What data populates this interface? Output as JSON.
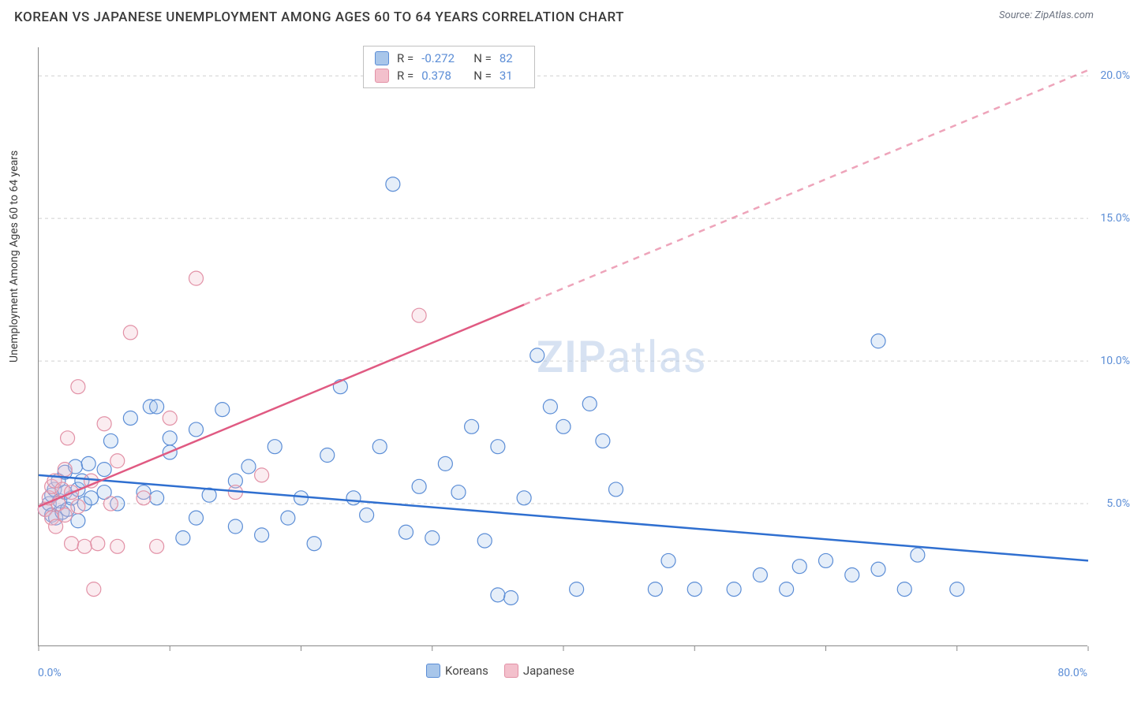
{
  "title": "KOREAN VS JAPANESE UNEMPLOYMENT AMONG AGES 60 TO 64 YEARS CORRELATION CHART",
  "source": "Source: ZipAtlas.com",
  "y_axis_label": "Unemployment Among Ages 60 to 64 years",
  "watermark_part1": "ZIP",
  "watermark_part2": "atlas",
  "chart": {
    "type": "scatter",
    "xlim": [
      0,
      80
    ],
    "ylim": [
      0,
      21
    ],
    "x_tick_positions": [
      0,
      10,
      20,
      30,
      40,
      50,
      60,
      70,
      80
    ],
    "x_tick_labels_shown": {
      "0": "0.0%",
      "80": "80.0%"
    },
    "y_gridlines": [
      5,
      10,
      15,
      20
    ],
    "y_tick_labels": {
      "5": "5.0%",
      "10": "10.0%",
      "15": "15.0%",
      "20": "20.0%"
    },
    "grid_color": "#d0d0d0",
    "axis_color": "#888888",
    "background_color": "#ffffff",
    "tick_label_color": "#5b8dd6",
    "title_fontsize": 17,
    "label_fontsize": 14,
    "marker_radius": 9,
    "marker_stroke_width": 1.2,
    "marker_fill_opacity": 0.3,
    "line_width": 2.5,
    "series": [
      {
        "name": "Koreans",
        "color_fill": "#a8c6ea",
        "color_stroke": "#5b8dd6",
        "line_color": "#2f6fd0",
        "R": "-0.272",
        "N": "82",
        "trendline": {
          "x1": 0,
          "y1": 6.0,
          "x2": 80,
          "y2": 3.0,
          "dash_from_x": null
        },
        "points": [
          [
            0.5,
            4.8
          ],
          [
            0.8,
            5.0
          ],
          [
            1.0,
            4.6
          ],
          [
            1.0,
            5.3
          ],
          [
            1.2,
            5.5
          ],
          [
            1.3,
            4.5
          ],
          [
            1.5,
            5.8
          ],
          [
            1.6,
            5.1
          ],
          [
            1.8,
            4.7
          ],
          [
            2.0,
            5.4
          ],
          [
            2.0,
            6.1
          ],
          [
            2.2,
            4.8
          ],
          [
            2.5,
            5.2
          ],
          [
            2.8,
            6.3
          ],
          [
            3.0,
            5.5
          ],
          [
            3.0,
            4.4
          ],
          [
            3.3,
            5.8
          ],
          [
            3.5,
            5.0
          ],
          [
            3.8,
            6.4
          ],
          [
            4.0,
            5.2
          ],
          [
            5.0,
            6.2
          ],
          [
            5.0,
            5.4
          ],
          [
            5.5,
            7.2
          ],
          [
            6.0,
            5.0
          ],
          [
            7.0,
            8.0
          ],
          [
            8.0,
            5.4
          ],
          [
            8.5,
            8.4
          ],
          [
            9.0,
            5.2
          ],
          [
            9.0,
            8.4
          ],
          [
            10.0,
            6.8
          ],
          [
            10.0,
            7.3
          ],
          [
            11.0,
            3.8
          ],
          [
            12.0,
            7.6
          ],
          [
            12.0,
            4.5
          ],
          [
            13.0,
            5.3
          ],
          [
            14.0,
            8.3
          ],
          [
            15.0,
            5.8
          ],
          [
            15.0,
            4.2
          ],
          [
            16.0,
            6.3
          ],
          [
            17.0,
            3.9
          ],
          [
            18.0,
            7.0
          ],
          [
            19.0,
            4.5
          ],
          [
            20.0,
            5.2
          ],
          [
            21.0,
            3.6
          ],
          [
            22.0,
            6.7
          ],
          [
            23.0,
            9.1
          ],
          [
            24.0,
            5.2
          ],
          [
            25.0,
            4.6
          ],
          [
            26.0,
            7.0
          ],
          [
            27.0,
            16.2
          ],
          [
            28.0,
            4.0
          ],
          [
            29.0,
            5.6
          ],
          [
            30.0,
            3.8
          ],
          [
            31.0,
            6.4
          ],
          [
            32.0,
            5.4
          ],
          [
            33.0,
            7.7
          ],
          [
            34.0,
            3.7
          ],
          [
            35.0,
            7.0
          ],
          [
            36.0,
            1.7
          ],
          [
            37.0,
            5.2
          ],
          [
            38.0,
            10.2
          ],
          [
            39.0,
            8.4
          ],
          [
            40.0,
            7.7
          ],
          [
            41.0,
            2.0
          ],
          [
            42.0,
            8.5
          ],
          [
            43.0,
            7.2
          ],
          [
            44.0,
            5.5
          ],
          [
            47.0,
            2.0
          ],
          [
            48.0,
            3.0
          ],
          [
            50.0,
            2.0
          ],
          [
            53.0,
            2.0
          ],
          [
            55.0,
            2.5
          ],
          [
            57.0,
            2.0
          ],
          [
            58.0,
            2.8
          ],
          [
            60.0,
            3.0
          ],
          [
            62.0,
            2.5
          ],
          [
            64.0,
            10.7
          ],
          [
            66.0,
            2.0
          ],
          [
            67.0,
            3.2
          ],
          [
            70.0,
            2.0
          ],
          [
            64.0,
            2.7
          ],
          [
            35.0,
            1.8
          ]
        ]
      },
      {
        "name": "Japanese",
        "color_fill": "#f3c0cc",
        "color_stroke": "#e291a6",
        "line_color": "#e05a82",
        "R": "0.378",
        "N": "31",
        "trendline": {
          "x1": 0,
          "y1": 4.9,
          "x2": 80,
          "y2": 20.2,
          "dash_from_x": 37
        },
        "points": [
          [
            0.5,
            4.8
          ],
          [
            0.8,
            5.2
          ],
          [
            1.0,
            4.5
          ],
          [
            1.0,
            5.6
          ],
          [
            1.2,
            5.8
          ],
          [
            1.3,
            4.2
          ],
          [
            1.5,
            5.0
          ],
          [
            1.8,
            5.5
          ],
          [
            2.0,
            4.6
          ],
          [
            2.0,
            6.2
          ],
          [
            2.2,
            7.3
          ],
          [
            2.5,
            3.6
          ],
          [
            2.5,
            5.4
          ],
          [
            3.0,
            9.1
          ],
          [
            3.0,
            4.9
          ],
          [
            3.5,
            3.5
          ],
          [
            4.0,
            5.8
          ],
          [
            4.2,
            2.0
          ],
          [
            4.5,
            3.6
          ],
          [
            5.0,
            7.8
          ],
          [
            5.5,
            5.0
          ],
          [
            6.0,
            3.5
          ],
          [
            6.0,
            6.5
          ],
          [
            7.0,
            11.0
          ],
          [
            8.0,
            5.2
          ],
          [
            9.0,
            3.5
          ],
          [
            10.0,
            8.0
          ],
          [
            12.0,
            12.9
          ],
          [
            15.0,
            5.4
          ],
          [
            17.0,
            6.0
          ],
          [
            29.0,
            11.6
          ]
        ]
      }
    ]
  },
  "legend_top": {
    "border_color": "#c0c0c0",
    "rows": [
      {
        "swatch_fill": "#a8c6ea",
        "swatch_stroke": "#5b8dd6",
        "r_label": "R =",
        "r_val": "-0.272",
        "n_label": "N =",
        "n_val": "82"
      },
      {
        "swatch_fill": "#f3c0cc",
        "swatch_stroke": "#e291a6",
        "r_label": "R =",
        "r_val": "0.378",
        "n_label": "N =",
        "n_val": "31"
      }
    ]
  },
  "legend_bottom": {
    "items": [
      {
        "swatch_fill": "#a8c6ea",
        "swatch_stroke": "#5b8dd6",
        "label": "Koreans"
      },
      {
        "swatch_fill": "#f3c0cc",
        "swatch_stroke": "#e291a6",
        "label": "Japanese"
      }
    ]
  }
}
